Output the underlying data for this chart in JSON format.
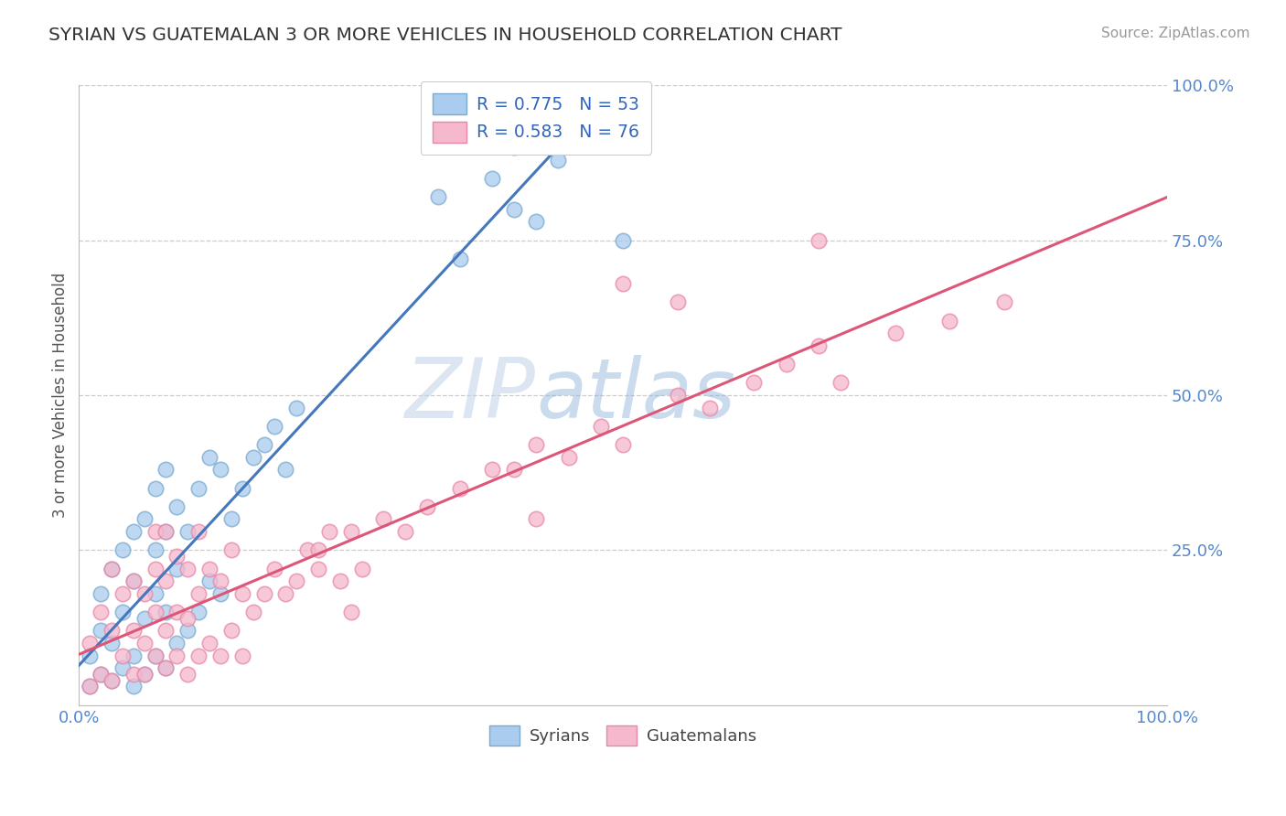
{
  "title": "SYRIAN VS GUATEMALAN 3 OR MORE VEHICLES IN HOUSEHOLD CORRELATION CHART",
  "source": "Source: ZipAtlas.com",
  "ylabel_text": "3 or more Vehicles in Household",
  "legend_r_syrian": "R = 0.775",
  "legend_n_syrian": "N = 53",
  "legend_r_guatemalan": "R = 0.583",
  "legend_n_guatemalan": "N = 76",
  "legend_label_syrian": "Syrians",
  "legend_label_guatemalan": "Guatemalans",
  "watermark": "ZIPatlas",
  "syrians_fill": "#aaccee",
  "syrians_edge": "#7aaad0",
  "guatemalans_fill": "#f5b8cc",
  "guatemalans_edge": "#e888a8",
  "syrian_line_color": "#4477bb",
  "guatemalan_line_color": "#dd5577",
  "legend_text_color": "#3366bb",
  "axis_tick_color": "#5588cc",
  "title_color": "#333333",
  "source_color": "#999999",
  "grid_color": "#cccccc",
  "ylabel_color": "#555555",
  "background_color": "#ffffff",
  "watermark_color": "#c8d8f0",
  "syrians_x": [
    1,
    1,
    2,
    2,
    2,
    3,
    3,
    3,
    4,
    4,
    4,
    5,
    5,
    5,
    5,
    6,
    6,
    6,
    7,
    7,
    7,
    7,
    8,
    8,
    8,
    8,
    9,
    9,
    9,
    10,
    10,
    11,
    11,
    12,
    12,
    13,
    13,
    14,
    15,
    16,
    17,
    18,
    19,
    20,
    33,
    35,
    38,
    40,
    40,
    42,
    44,
    50,
    33
  ],
  "syrians_y": [
    3,
    8,
    5,
    12,
    18,
    4,
    10,
    22,
    6,
    15,
    25,
    3,
    8,
    20,
    28,
    5,
    14,
    30,
    8,
    18,
    25,
    35,
    6,
    15,
    28,
    38,
    10,
    22,
    32,
    12,
    28,
    15,
    35,
    20,
    40,
    18,
    38,
    30,
    35,
    40,
    42,
    45,
    38,
    48,
    82,
    72,
    85,
    80,
    90,
    78,
    88,
    75,
    100
  ],
  "guatemalans_x": [
    1,
    1,
    2,
    2,
    3,
    3,
    3,
    4,
    4,
    5,
    5,
    5,
    6,
    6,
    6,
    7,
    7,
    7,
    7,
    8,
    8,
    8,
    8,
    9,
    9,
    9,
    10,
    10,
    10,
    11,
    11,
    11,
    12,
    12,
    13,
    13,
    14,
    14,
    15,
    15,
    16,
    17,
    18,
    19,
    20,
    21,
    22,
    23,
    24,
    25,
    26,
    28,
    30,
    32,
    35,
    38,
    40,
    42,
    45,
    48,
    50,
    55,
    58,
    62,
    65,
    68,
    70,
    75,
    80,
    85,
    50,
    22,
    55,
    25,
    42,
    68
  ],
  "guatemalans_y": [
    3,
    10,
    5,
    15,
    4,
    12,
    22,
    8,
    18,
    5,
    12,
    20,
    5,
    10,
    18,
    8,
    15,
    22,
    28,
    6,
    12,
    20,
    28,
    8,
    15,
    24,
    5,
    14,
    22,
    8,
    18,
    28,
    10,
    22,
    8,
    20,
    12,
    25,
    8,
    18,
    15,
    18,
    22,
    18,
    20,
    25,
    22,
    28,
    20,
    28,
    22,
    30,
    28,
    32,
    35,
    38,
    38,
    42,
    40,
    45,
    42,
    50,
    48,
    52,
    55,
    58,
    52,
    60,
    62,
    65,
    68,
    25,
    65,
    15,
    30,
    75
  ],
  "xlim": [
    0,
    100
  ],
  "ylim": [
    0,
    100
  ],
  "yticks": [
    25,
    50,
    75,
    100
  ],
  "ytick_labels": [
    "25.0%",
    "50.0%",
    "75.0%",
    "100.0%"
  ],
  "xtick_labels": [
    "0.0%",
    "100.0%"
  ]
}
